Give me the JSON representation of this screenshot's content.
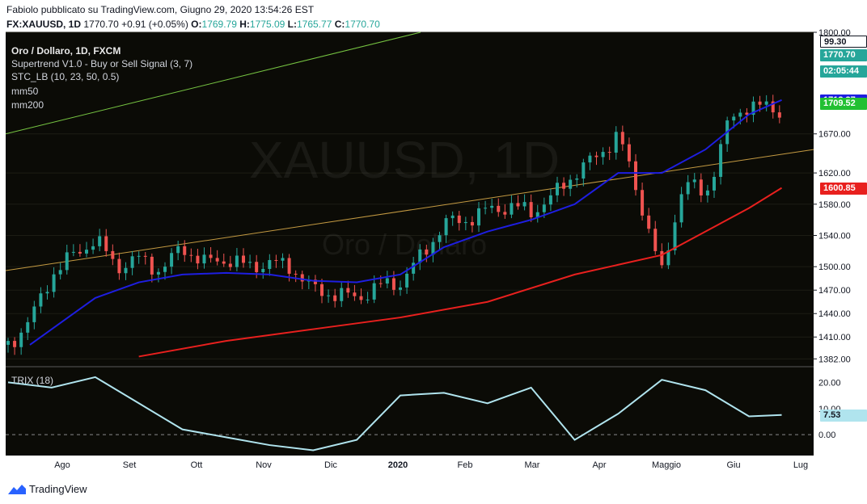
{
  "header": {
    "line1": "Fabiolo pubblicato su TradingView.com, Giugno 29, 2020 13:54:26 EST",
    "symbol": "FX:XAUUSD, 1D",
    "last": "1770.70",
    "change": "+0.91 (+0.05%)",
    "o_label": "O:",
    "o_value": "1769.79",
    "h_label": "H:",
    "h_value": "1775.09",
    "l_label": "L:",
    "l_value": "1765.77",
    "c_label": "C:",
    "c_value": "1770.70"
  },
  "legend": {
    "title": "Oro / Dollaro, 1D, FXCM",
    "supertrend": "Supertrend V1.0 - Buy or Sell Signal (3, 7)",
    "stc": "STC_LB (10, 23, 50, 0.5)",
    "mm50": "mm50",
    "mm200": "mm200",
    "trix": "TRIX (18)"
  },
  "watermark": {
    "symbol": "XAUUSD, 1D",
    "name": "Oro / Dollaro"
  },
  "price_tags": [
    {
      "label": "99.30",
      "value": 1789,
      "bg": "#ffffff",
      "fg": "#131722"
    },
    {
      "label": "1770.70",
      "value": 1770.7,
      "bg": "#26a69a",
      "fg": "#ffffff"
    },
    {
      "label": "02:05:44",
      "value": 1750,
      "bg": "#26a69a",
      "fg": "#ffffff"
    },
    {
      "label": "1713.37",
      "value": 1713.37,
      "bg": "#1e1ee0",
      "fg": "#ffffff"
    },
    {
      "label": "1709.52",
      "value": 1709.52,
      "bg": "#22c032",
      "fg": "#ffffff"
    },
    {
      "label": "1600.85",
      "value": 1600.85,
      "bg": "#e8201e",
      "fg": "#ffffff"
    }
  ],
  "trix_tag": {
    "label": "7.53",
    "value": 7.53,
    "bg": "#b0e4ee",
    "fg": "#131722"
  },
  "footer": {
    "brand": "TradingView"
  },
  "colors": {
    "up": "#26a69a",
    "down": "#ef5350",
    "mm50": "#1e1ee0",
    "mm200": "#e8201e",
    "supertrend_up": "#22c032",
    "supertrend_down": "#e8201e",
    "trix": "#b0e4ee"
  },
  "chart_data": [
    {
      "type": "line",
      "title": "Oro / Dollaro, 1D, FXCM",
      "x_ticks": [
        "Ago",
        "Set",
        "Ott",
        "Nov",
        "Dic",
        "2020",
        "Feb",
        "Mar",
        "Apr",
        "Maggio",
        "Giu",
        "Lug"
      ],
      "y_ticks": [
        1382,
        1410,
        1440,
        1470,
        1500,
        1540,
        1580,
        1620,
        1670,
        1800
      ],
      "y_tick_labels": [
        "1382.00",
        "1410.00",
        "1440.00",
        "1470.00",
        "1500.00",
        "1540.00",
        "1580.00",
        "1620.00",
        "1670.00",
        "1800.00"
      ],
      "ylim": [
        1372,
        1800
      ],
      "series": [
        {
          "name": "close",
          "x": [
            0,
            10,
            20,
            30,
            40,
            50,
            60,
            70,
            80,
            90,
            100,
            110,
            120,
            130,
            140,
            150,
            160,
            170,
            180,
            190,
            200,
            210,
            220,
            230,
            240,
            250,
            260,
            270,
            280,
            290,
            300,
            310,
            320,
            330,
            340,
            350
          ],
          "values": [
            1400,
            1430,
            1490,
            1515,
            1535,
            1500,
            1510,
            1495,
            1525,
            1505,
            1510,
            1500,
            1505,
            1500,
            1470,
            1465,
            1460,
            1475,
            1480,
            1515,
            1555,
            1560,
            1572,
            1578,
            1570,
            1590,
            1620,
            1640,
            1670,
            1585,
            1490,
            1610,
            1590,
            1680,
            1710,
            1700
          ]
        },
        {
          "name": "mm50",
          "x": [
            10,
            40,
            60,
            80,
            100,
            120,
            140,
            160,
            180,
            200,
            220,
            240,
            260,
            280,
            300,
            320,
            340,
            355
          ],
          "values": [
            1400,
            1460,
            1480,
            1490,
            1492,
            1490,
            1482,
            1480,
            1490,
            1525,
            1545,
            1560,
            1580,
            1620,
            1620,
            1650,
            1695,
            1713.37
          ]
        },
        {
          "name": "mm200",
          "x": [
            60,
            100,
            140,
            180,
            220,
            260,
            300,
            340,
            355
          ],
          "values": [
            1385,
            1405,
            1420,
            1435,
            1455,
            1490,
            1515,
            1575,
            1600.85
          ]
        }
      ]
    },
    {
      "type": "line",
      "title": "TRIX (18)",
      "y_ticks": [
        0,
        10,
        20
      ],
      "y_tick_labels": [
        "0.00",
        "10.00",
        "20.00"
      ],
      "ylim": [
        -8,
        26
      ],
      "series": [
        {
          "name": "TRIX (18)",
          "x": [
            0,
            20,
            40,
            60,
            80,
            100,
            120,
            140,
            160,
            180,
            200,
            220,
            240,
            260,
            280,
            300,
            320,
            340,
            355
          ],
          "values": [
            20,
            18,
            22,
            12,
            2,
            -1,
            -4,
            -6,
            -2,
            15,
            16,
            12,
            18,
            -2,
            8,
            21,
            17,
            7,
            7.53
          ]
        }
      ]
    }
  ]
}
